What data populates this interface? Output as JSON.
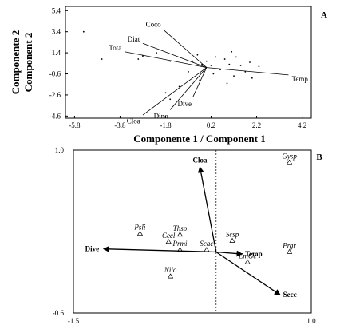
{
  "chart_data": [
    {
      "panel": "A",
      "type": "scatter",
      "title": "",
      "xlabel": "Componente 1 / Component 1",
      "ylabel_lines": [
        "Componente 2",
        "Component 2"
      ],
      "xlim": [
        -6.2,
        4.6
      ],
      "ylim": [
        -4.8,
        5.8
      ],
      "xticks": [
        "-5.8",
        "-3.8",
        "-1.8",
        "0.2",
        "2.2",
        "4.2"
      ],
      "xtick_values": [
        -5.8,
        -3.8,
        -1.8,
        0.2,
        2.2,
        4.2
      ],
      "yticks": [
        "5.4",
        "3.4",
        "1.4",
        "-0.6",
        "-2.6",
        "-4.6"
      ],
      "ytick_values": [
        5.4,
        3.4,
        1.4,
        -0.6,
        -2.6,
        -4.6
      ],
      "origin": [
        0,
        0
      ],
      "vectors": [
        {
          "name": "Coco",
          "x": -1.9,
          "y": 3.6
        },
        {
          "name": "Diat",
          "x": -2.8,
          "y": 2.3
        },
        {
          "name": "Tota",
          "x": -3.6,
          "y": 1.5
        },
        {
          "name": "Temp",
          "x": 3.6,
          "y": -0.7
        },
        {
          "name": "Cloa",
          "x": -2.8,
          "y": -4.5
        },
        {
          "name": "Dino",
          "x": -1.6,
          "y": -4.0
        },
        {
          "name": "Dive",
          "x": -0.6,
          "y": -2.8
        }
      ],
      "points": [
        [
          -5.4,
          3.4
        ],
        [
          -4.6,
          0.8
        ],
        [
          -3.0,
          0.8
        ],
        [
          -2.8,
          1.1
        ],
        [
          -2.2,
          1.4
        ],
        [
          -1.6,
          0.6
        ],
        [
          -1.8,
          -2.4
        ],
        [
          -1.2,
          -1.8
        ],
        [
          -1.6,
          -3.0
        ],
        [
          -0.8,
          -0.4
        ],
        [
          -0.6,
          0.6
        ],
        [
          -0.4,
          1.2
        ],
        [
          -0.2,
          0.3
        ],
        [
          0.0,
          0.6
        ],
        [
          0.2,
          0.2
        ],
        [
          0.3,
          -0.6
        ],
        [
          0.4,
          1.0
        ],
        [
          0.6,
          -0.2
        ],
        [
          0.8,
          0.8
        ],
        [
          1.0,
          0.3
        ],
        [
          1.2,
          -0.8
        ],
        [
          1.3,
          1.0
        ],
        [
          1.5,
          0.2
        ],
        [
          1.7,
          -0.4
        ],
        [
          1.9,
          0.5
        ],
        [
          2.0,
          -1.0
        ],
        [
          2.3,
          0.1
        ],
        [
          0.9,
          -1.5
        ],
        [
          -0.3,
          -1.2
        ],
        [
          1.1,
          1.5
        ]
      ]
    },
    {
      "panel": "B",
      "type": "scatter",
      "title": "",
      "xlim": [
        -1.5,
        1.0
      ],
      "ylim": [
        -0.6,
        1.0
      ],
      "xticks": [
        "-1.5",
        "1.0"
      ],
      "xtick_values": [
        -1.5,
        1.0
      ],
      "yticks": [
        "1.0",
        "-0.6"
      ],
      "ytick_values": [
        1.0,
        -0.6
      ],
      "env_vectors": [
        {
          "name": "Cloa",
          "x": -0.17,
          "y": 0.83
        },
        {
          "name": "Dive",
          "x": -1.18,
          "y": 0.03
        },
        {
          "name": "Temp",
          "x": 0.27,
          "y": -0.02
        },
        {
          "name": "Secc",
          "x": 0.67,
          "y": -0.42
        }
      ],
      "species": [
        {
          "name": "Gysp",
          "x": 0.77,
          "y": 0.88
        },
        {
          "name": "Psli",
          "x": -0.8,
          "y": 0.18
        },
        {
          "name": "Thsp",
          "x": -0.38,
          "y": 0.17
        },
        {
          "name": "Cecl",
          "x": -0.5,
          "y": 0.1
        },
        {
          "name": "Scsp",
          "x": 0.17,
          "y": 0.11
        },
        {
          "name": "Scac",
          "x": -0.1,
          "y": 0.02
        },
        {
          "name": "Prmi",
          "x": -0.38,
          "y": 0.02
        },
        {
          "name": "Prgr",
          "x": 0.77,
          "y": 0.0
        },
        {
          "name": "EmGe",
          "x": 0.33,
          "y": -0.1
        },
        {
          "name": "Nilo",
          "x": -0.48,
          "y": -0.24
        }
      ]
    }
  ],
  "panel_letters": {
    "a": "A",
    "b": "B"
  }
}
